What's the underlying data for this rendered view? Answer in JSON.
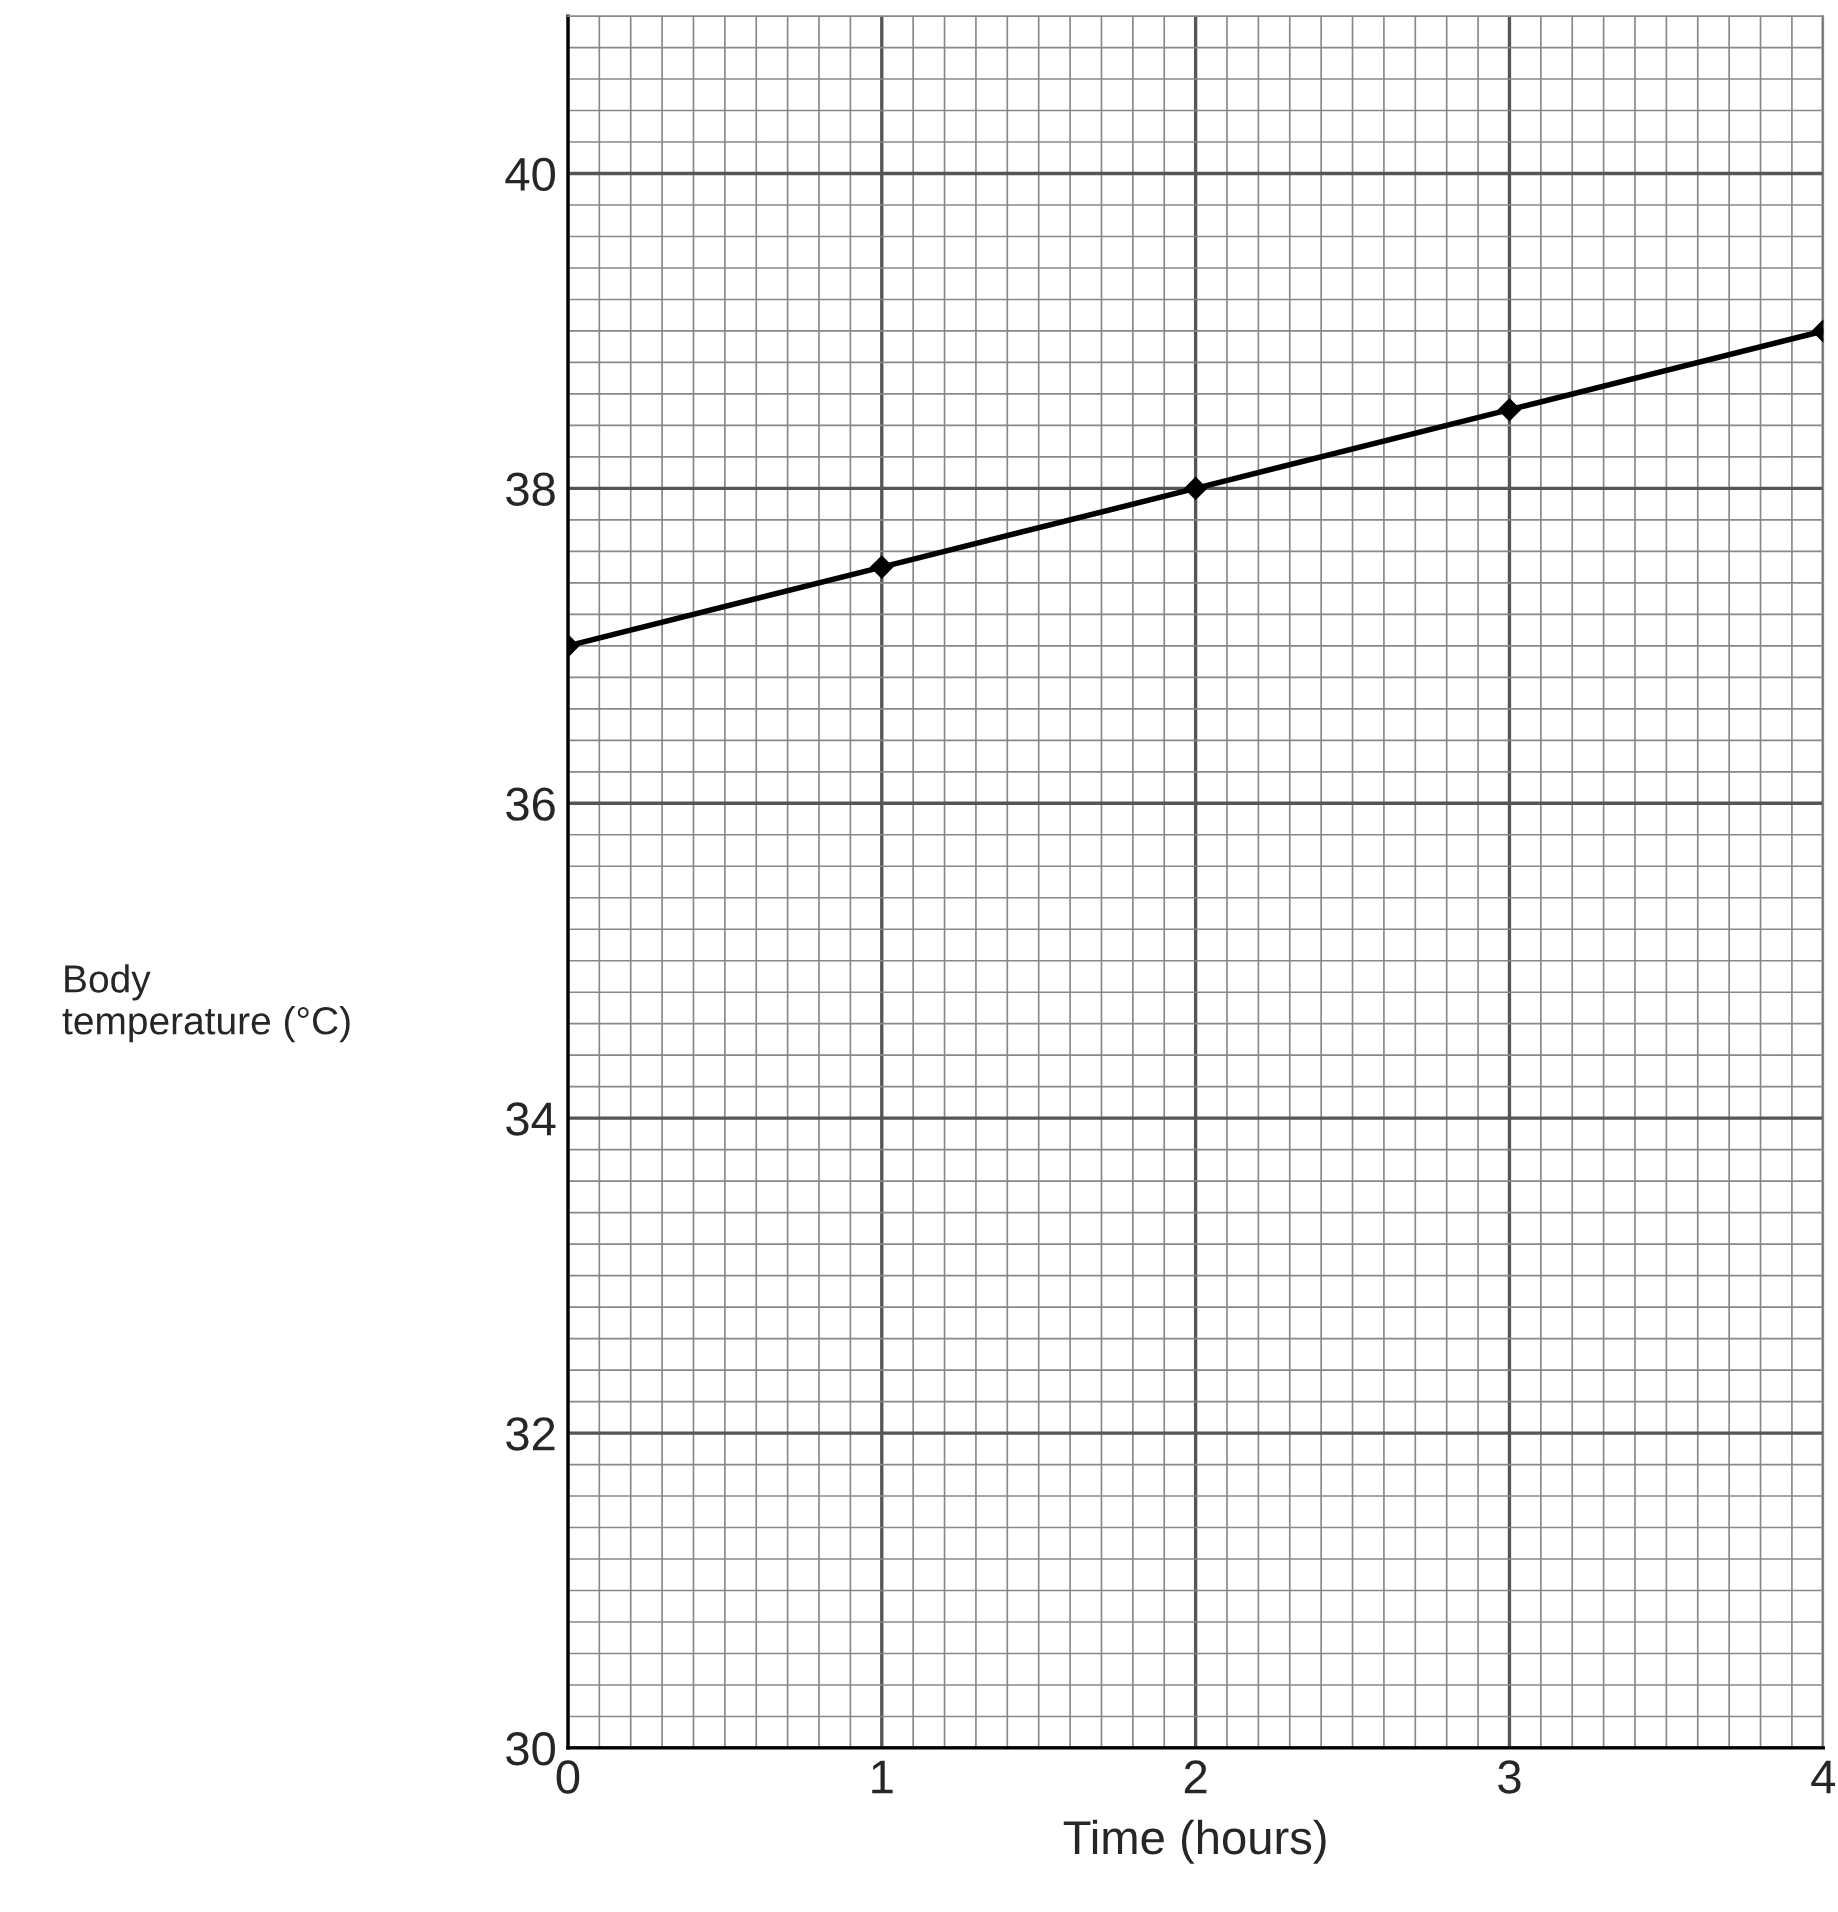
{
  "chart_data": {
    "type": "line",
    "xlabel": "Time (hours)",
    "ylabel": "Body\ntemperature (°C)",
    "x": [
      0,
      1,
      2,
      3,
      4
    ],
    "series": [
      {
        "color": "#000000",
        "values": [
          37,
          37.5,
          38,
          38.5,
          39
        ]
      }
    ],
    "xlim": [
      0,
      4
    ],
    "xticks": [
      0,
      1,
      2,
      3,
      4
    ],
    "ylim": [
      30,
      41
    ],
    "yticks": [
      30,
      32,
      34,
      36,
      38,
      40
    ],
    "grid": true,
    "marker": "diamond",
    "line_style": "solid"
  }
}
